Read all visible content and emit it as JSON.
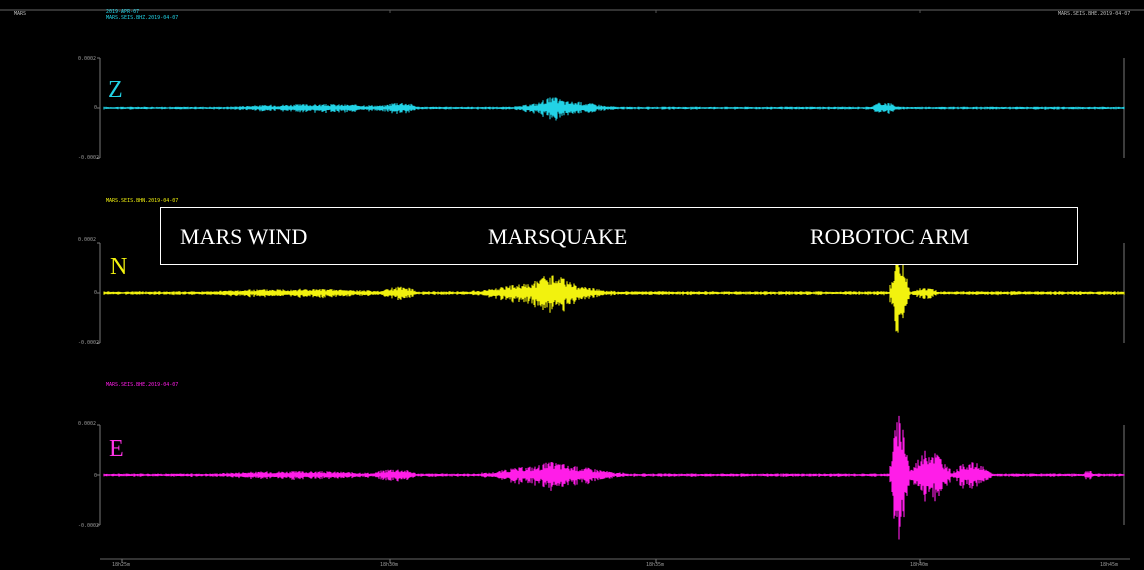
{
  "header": {
    "left_label": "MARS",
    "title_line1": "2019-APR-07",
    "title_line2": "MARS.SEIS.BHZ.2019-04-07",
    "right_label": "MARS.SEIS.BHE.2019-04-07"
  },
  "chart_data": {
    "type": "line",
    "title": "",
    "xlabel": "",
    "ylabel": "",
    "x_tick_labels": [
      "18h25m",
      "18h30m",
      "18h35m",
      "18h40m",
      "18h45m"
    ],
    "channels": [
      {
        "name": "Z",
        "color": "#22d3e6",
        "station_label": "MARS.SEIS.BHZ.2019-04-07",
        "ytick_top": "0.0002",
        "ytick_mid": "0",
        "ytick_bottom": "-0.0002",
        "ylim": [
          -0.0002,
          0.0002
        ],
        "envelope_segments": [
          {
            "start": 0.0,
            "end": 1.0,
            "amp": 0.06
          },
          {
            "start": 0.1,
            "end": 0.32,
            "amp": 0.18
          },
          {
            "start": 0.27,
            "end": 0.31,
            "amp": 0.28
          },
          {
            "start": 0.4,
            "end": 0.5,
            "amp": 0.32
          },
          {
            "start": 0.42,
            "end": 0.46,
            "amp": 0.5
          },
          {
            "start": 0.75,
            "end": 0.78,
            "amp": 0.28
          }
        ]
      },
      {
        "name": "N",
        "color": "#f2f20e",
        "station_label": "MARS.SEIS.BHN.2019-04-07",
        "ytick_top": "0.0002",
        "ytick_mid": "0",
        "ytick_bottom": "-0.0002",
        "ylim": [
          -0.0002,
          0.0002
        ],
        "envelope_segments": [
          {
            "start": 0.0,
            "end": 1.0,
            "amp": 0.08
          },
          {
            "start": 0.08,
            "end": 0.3,
            "amp": 0.2
          },
          {
            "start": 0.27,
            "end": 0.31,
            "amp": 0.3
          },
          {
            "start": 0.36,
            "end": 0.5,
            "amp": 0.45
          },
          {
            "start": 0.41,
            "end": 0.47,
            "amp": 0.85
          },
          {
            "start": 0.77,
            "end": 0.79,
            "amp": 1.75
          },
          {
            "start": 0.79,
            "end": 0.82,
            "amp": 0.25
          }
        ]
      },
      {
        "name": "E",
        "color": "#ff1de8",
        "station_label": "MARS.SEIS.BHE.2019-04-07",
        "ytick_top": "0.0002",
        "ytick_mid": "0",
        "ytick_bottom": "-0.0002",
        "ylim": [
          -0.0002,
          0.0002
        ],
        "envelope_segments": [
          {
            "start": 0.0,
            "end": 1.0,
            "amp": 0.07
          },
          {
            "start": 0.08,
            "end": 0.3,
            "amp": 0.18
          },
          {
            "start": 0.26,
            "end": 0.31,
            "amp": 0.3
          },
          {
            "start": 0.37,
            "end": 0.51,
            "amp": 0.45
          },
          {
            "start": 0.41,
            "end": 0.47,
            "amp": 0.6
          },
          {
            "start": 0.77,
            "end": 0.79,
            "amp": 2.7
          },
          {
            "start": 0.79,
            "end": 0.83,
            "amp": 1.2
          },
          {
            "start": 0.83,
            "end": 0.87,
            "amp": 0.6
          },
          {
            "start": 0.96,
            "end": 0.97,
            "amp": 0.25
          }
        ]
      }
    ],
    "annotations": [
      "MARS WIND",
      "MARSQUAKE",
      "ROBOTOC ARM"
    ]
  }
}
